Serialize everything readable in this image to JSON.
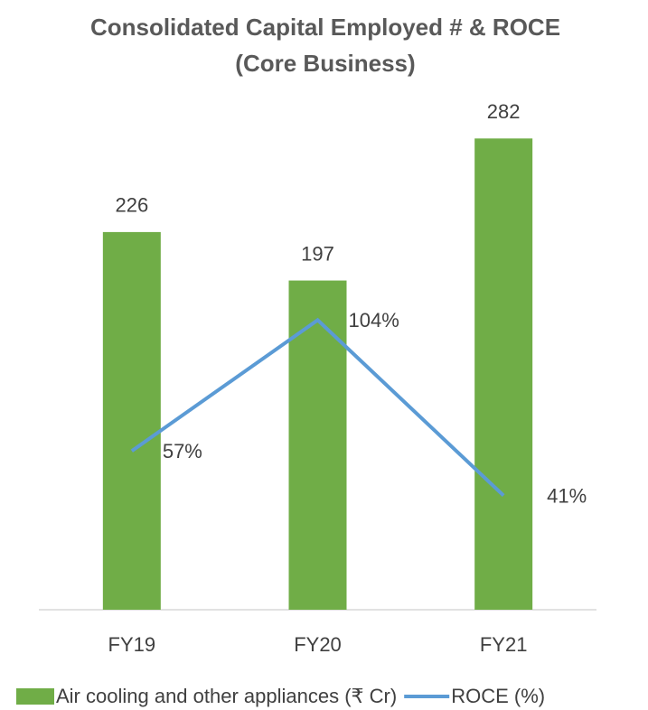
{
  "chart_data": {
    "type": "bar",
    "title": [
      "Consolidated Capital Employed # & ROCE",
      "(Core Business)"
    ],
    "categories": [
      "FY19",
      "FY20",
      "FY21"
    ],
    "series": [
      {
        "name": "Air cooling and other appliances (₹ Cr)",
        "type": "bar",
        "color": "#70ad47",
        "values": [
          226,
          197,
          282
        ]
      },
      {
        "name": "ROCE (%)",
        "type": "line",
        "axis": "y2",
        "color": "#5b9bd5",
        "values": [
          57,
          104,
          41
        ],
        "value_labels": [
          "57%",
          "104%",
          "41%"
        ]
      }
    ],
    "ylim": [
      0,
      300
    ],
    "y2lim": [
      0,
      180
    ],
    "legend": "bottom"
  }
}
